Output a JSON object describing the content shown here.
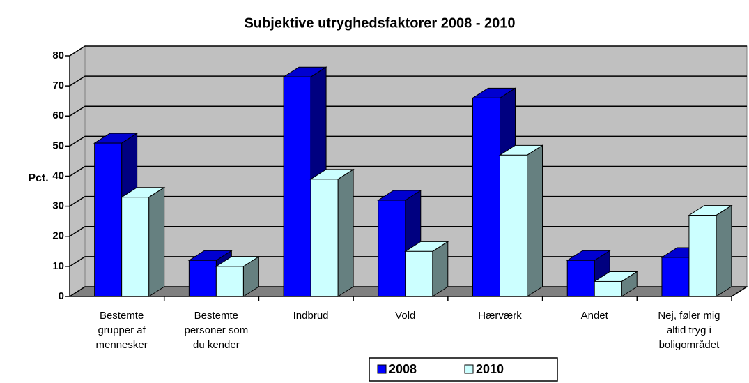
{
  "chart_data": {
    "type": "bar3d",
    "title": "Subjektive utryghedsfaktorer 2008 - 2010",
    "y_label": "Pct.",
    "categories": [
      [
        "Bestemte",
        "grupper af",
        "mennesker"
      ],
      [
        "Bestemte",
        "personer som",
        "du kender"
      ],
      [
        "Indbrud"
      ],
      [
        "Vold"
      ],
      [
        "Hærværk"
      ],
      [
        "Andet"
      ],
      [
        "Nej, føler mig",
        "altid tryg i",
        "boligområdet"
      ]
    ],
    "series": [
      {
        "name": "2008",
        "color": "#0000ff",
        "side": "#000080",
        "top": "#0000d0",
        "values": [
          51,
          12,
          73,
          32,
          66,
          12,
          13
        ]
      },
      {
        "name": "2010",
        "color": "#ccffff",
        "side": "#668080",
        "top": "#ccffff",
        "values": [
          33,
          10,
          39,
          15,
          47,
          5,
          27
        ]
      }
    ],
    "ylim": [
      0,
      80
    ],
    "yticks": [
      0,
      10,
      20,
      30,
      40,
      50,
      60,
      70,
      80
    ],
    "grid": true,
    "legend": "bottom"
  }
}
